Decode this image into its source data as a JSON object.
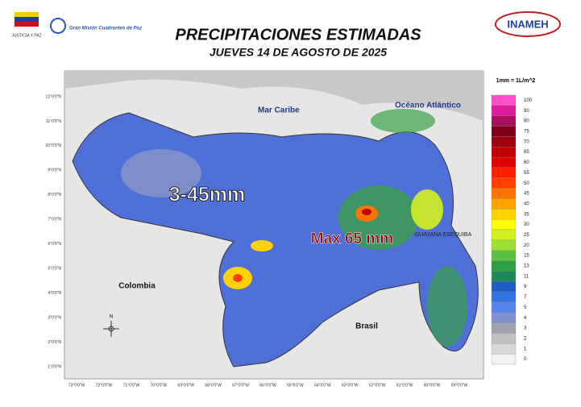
{
  "header": {
    "title": "PRECIPITACIONES ESTIMADAS",
    "subtitle": "JUEVES 14 DE AGOSTO DE 2025",
    "left_logo_caption": "JUSTICIA Y PAZ",
    "center_logo_text": "Gran Misión Cuadrantes de Paz",
    "right_logo_text": "INAMEH"
  },
  "map": {
    "labels": {
      "sea": "Mar Caribe",
      "ocean": "Océano Atlántico",
      "colombia": "Colombia",
      "brasil": "Brasil",
      "guayana": "GUAYANA ESEQUIBA",
      "range": "3-45mm",
      "max": "Max 65 mm"
    },
    "compass": "N",
    "lat_labels": [
      "12°0'0\"N",
      "11°0'0\"N",
      "10°0'0\"N",
      "9°0'0\"N",
      "8°0'0\"N",
      "7°0'0\"N",
      "6°0'0\"N",
      "5°0'0\"N",
      "4°0'0\"N",
      "3°0'0\"N",
      "2°0'0\"N",
      "1°0'0\"N"
    ],
    "lon_labels": [
      "73°0'0\"W",
      "72°0'0\"W",
      "71°0'0\"W",
      "70°0'0\"W",
      "69°0'0\"W",
      "68°0'0\"W",
      "67°0'0\"W",
      "66°0'0\"W",
      "65°0'0\"W",
      "64°0'0\"W",
      "63°0'0\"W",
      "62°0'0\"W",
      "61°0'0\"W",
      "60°0'0\"W",
      "59°0'0\"W"
    ]
  },
  "legend": {
    "unit": "1mm = 1L/m^2",
    "items": [
      {
        "label": 100,
        "color": "#ff4fc8"
      },
      {
        "label": 90,
        "color": "#dc1e9e"
      },
      {
        "label": 80,
        "color": "#a8105e"
      },
      {
        "label": 75,
        "color": "#7e0018"
      },
      {
        "label": 70,
        "color": "#9c0010"
      },
      {
        "label": 65,
        "color": "#c00000"
      },
      {
        "label": 60,
        "color": "#e00000"
      },
      {
        "label": 55,
        "color": "#ff1e00"
      },
      {
        "label": 50,
        "color": "#ff4000"
      },
      {
        "label": 45,
        "color": "#ff7400"
      },
      {
        "label": 40,
        "color": "#ffa200"
      },
      {
        "label": 35,
        "color": "#ffd200"
      },
      {
        "label": 30,
        "color": "#ffff00"
      },
      {
        "label": 25,
        "color": "#d2f01e"
      },
      {
        "label": 20,
        "color": "#9ee032"
      },
      {
        "label": 15,
        "color": "#5cc040"
      },
      {
        "label": 13,
        "color": "#2ea044"
      },
      {
        "label": 11,
        "color": "#1e8a5a"
      },
      {
        "label": 9,
        "color": "#1e5ec4"
      },
      {
        "label": 7,
        "color": "#3272e2"
      },
      {
        "label": 5,
        "color": "#5684ee"
      },
      {
        "label": 4,
        "color": "#8092d2"
      },
      {
        "label": 3,
        "color": "#a0a2b4"
      },
      {
        "label": 2,
        "color": "#c0c0c0"
      },
      {
        "label": 1,
        "color": "#d8d8d8"
      },
      {
        "label": 0,
        "color": "#f2f2f2"
      }
    ]
  }
}
